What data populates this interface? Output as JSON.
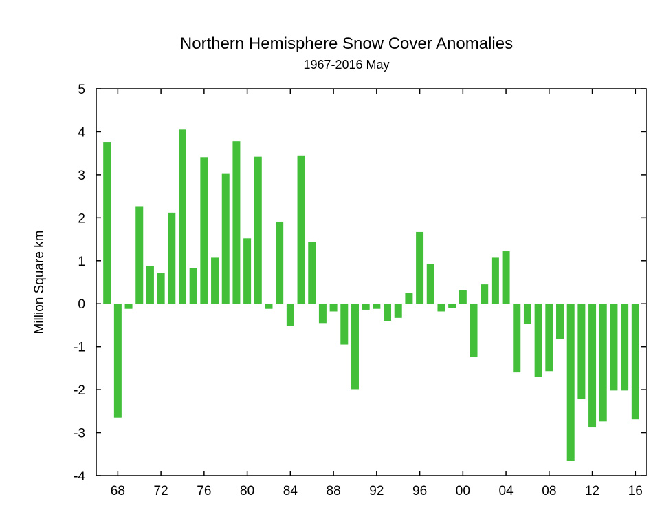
{
  "chart_data": {
    "type": "bar",
    "title": "Northern Hemisphere Snow Cover Anomalies",
    "subtitle": "1967-2016 May",
    "xlabel": "",
    "ylabel": "Million Square km",
    "ylim": [
      -4,
      5
    ],
    "y_ticks": [
      5,
      4,
      3,
      2,
      1,
      0,
      -1,
      -2,
      -3,
      -4
    ],
    "xlim": [
      1966,
      2017
    ],
    "x_ticks": [
      {
        "year": 1968,
        "label": "68"
      },
      {
        "year": 1972,
        "label": "72"
      },
      {
        "year": 1976,
        "label": "76"
      },
      {
        "year": 1980,
        "label": "80"
      },
      {
        "year": 1984,
        "label": "84"
      },
      {
        "year": 1988,
        "label": "88"
      },
      {
        "year": 1992,
        "label": "92"
      },
      {
        "year": 1996,
        "label": "96"
      },
      {
        "year": 2000,
        "label": "00"
      },
      {
        "year": 2004,
        "label": "04"
      },
      {
        "year": 2008,
        "label": "08"
      },
      {
        "year": 2012,
        "label": "12"
      },
      {
        "year": 2016,
        "label": "16"
      }
    ],
    "bar_color": "#43bf3a",
    "grid": false,
    "x": [
      1967,
      1968,
      1969,
      1970,
      1971,
      1972,
      1973,
      1974,
      1975,
      1976,
      1977,
      1978,
      1979,
      1980,
      1981,
      1982,
      1983,
      1984,
      1985,
      1986,
      1987,
      1988,
      1989,
      1990,
      1991,
      1992,
      1993,
      1994,
      1995,
      1996,
      1997,
      1998,
      1999,
      2000,
      2001,
      2002,
      2003,
      2004,
      2005,
      2006,
      2007,
      2008,
      2009,
      2010,
      2011,
      2012,
      2013,
      2014,
      2015,
      2016
    ],
    "values": [
      3.75,
      -2.65,
      -0.12,
      2.27,
      0.88,
      0.72,
      2.12,
      4.05,
      0.83,
      3.41,
      1.07,
      3.02,
      3.78,
      1.52,
      3.42,
      -0.12,
      1.91,
      -0.52,
      3.45,
      1.43,
      -0.45,
      -0.18,
      -0.95,
      -1.99,
      -0.14,
      -0.12,
      -0.4,
      -0.33,
      0.25,
      1.67,
      0.92,
      -0.18,
      -0.1,
      0.31,
      -1.24,
      0.45,
      1.07,
      1.22,
      -1.6,
      -0.47,
      -1.71,
      -1.57,
      -0.82,
      -3.65,
      -2.22,
      -2.88,
      -2.74,
      -2.02,
      -2.02,
      -2.69
    ]
  }
}
